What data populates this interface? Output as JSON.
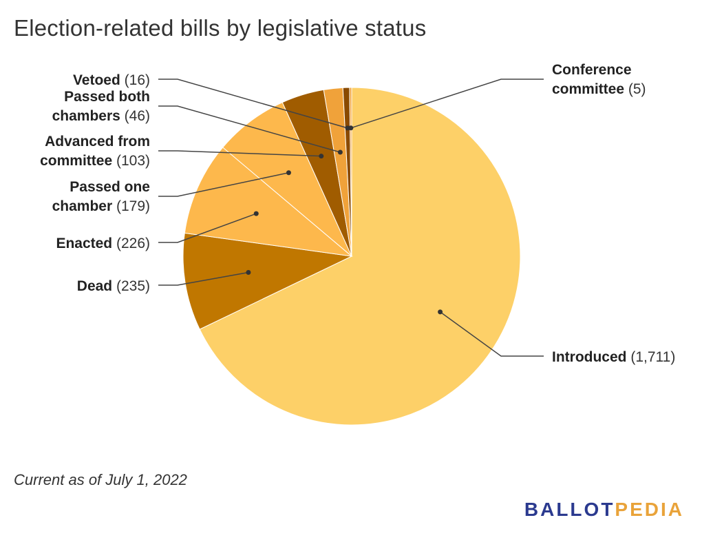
{
  "chart_data": {
    "type": "pie",
    "title": "Election-related bills by legislative status",
    "slices": [
      {
        "label": "Introduced",
        "label_lines": [
          "Introduced"
        ],
        "value": 1711,
        "value_label": "(1,711)",
        "color": "#fdd068"
      },
      {
        "label": "Dead",
        "label_lines": [
          "Dead"
        ],
        "value": 235,
        "value_label": "(235)",
        "color": "#c07700"
      },
      {
        "label": "Enacted",
        "label_lines": [
          "Enacted"
        ],
        "value": 226,
        "value_label": "(226)",
        "color": "#fdb84c"
      },
      {
        "label": "Passed one chamber",
        "label_lines": [
          "Passed one",
          "chamber"
        ],
        "value": 179,
        "value_label": "(179)",
        "color": "#fdb84c"
      },
      {
        "label": "Advanced from committee",
        "label_lines": [
          "Advanced from",
          "committee"
        ],
        "value": 103,
        "value_label": "(103)",
        "color": "#a05c00"
      },
      {
        "label": "Passed both chambers",
        "label_lines": [
          "Passed both",
          "chambers"
        ],
        "value": 46,
        "value_label": "(46)",
        "color": "#f0a23a"
      },
      {
        "label": "Vetoed",
        "label_lines": [
          "Vetoed"
        ],
        "value": 16,
        "value_label": "(16)",
        "color": "#8a4a00"
      },
      {
        "label": "Conference committee",
        "label_lines": [
          "Conference",
          "committee"
        ],
        "value": 5,
        "value_label": "(5)",
        "color": "#f0a23a"
      }
    ]
  },
  "footnote": "Current as of July 1, 2022",
  "brand": {
    "part1": "BALLOT",
    "part2": "PEDIA",
    "color1": "#2b3a8f",
    "color2": "#e9a33a"
  }
}
